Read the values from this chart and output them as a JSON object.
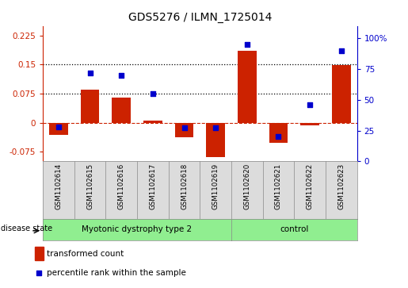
{
  "title": "GDS5276 / ILMN_1725014",
  "samples": [
    "GSM1102614",
    "GSM1102615",
    "GSM1102616",
    "GSM1102617",
    "GSM1102618",
    "GSM1102619",
    "GSM1102620",
    "GSM1102621",
    "GSM1102622",
    "GSM1102623"
  ],
  "bar_values": [
    -0.032,
    0.085,
    0.065,
    0.005,
    -0.038,
    -0.09,
    0.185,
    -0.052,
    -0.008,
    0.148
  ],
  "dot_values": [
    28,
    72,
    70,
    55,
    27,
    27,
    95,
    20,
    46,
    90
  ],
  "groups": [
    {
      "label": "Myotonic dystrophy type 2",
      "start": 0,
      "end": 5,
      "color": "#90EE90"
    },
    {
      "label": "control",
      "start": 6,
      "end": 9,
      "color": "#90EE90"
    }
  ],
  "bar_color": "#CC2200",
  "dot_color": "#0000CC",
  "ylim_left": [
    -0.1,
    0.25
  ],
  "ylim_right": [
    0,
    110
  ],
  "yticks_left": [
    -0.075,
    0,
    0.075,
    0.15,
    0.225
  ],
  "yticks_right": [
    0,
    25,
    50,
    75,
    100
  ],
  "ytick_labels_left": [
    "-0.075",
    "0",
    "0.075",
    "0.15",
    "0.225"
  ],
  "ytick_labels_right": [
    "0",
    "25",
    "50",
    "75",
    "100%"
  ],
  "hlines": [
    0.075,
    0.15
  ],
  "sample_bg_color": "#DCDCDC",
  "disease_state_label": "disease state",
  "legend_bar_label": "transformed count",
  "legend_dot_label": "percentile rank within the sample"
}
